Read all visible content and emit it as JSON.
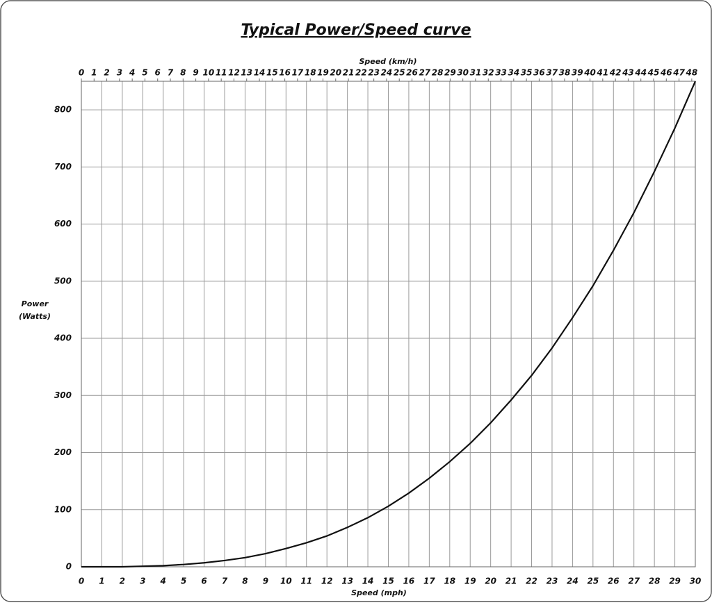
{
  "chart_data": {
    "type": "line",
    "title": "Typical Power/Speed curve",
    "xlabel": "Speed (mph)",
    "x2label": "Speed (km/h)",
    "ylabel": [
      "Power",
      "(Watts)"
    ],
    "x": [
      0,
      1,
      2,
      3,
      4,
      5,
      6,
      7,
      8,
      9,
      10,
      11,
      12,
      13,
      14,
      15,
      16,
      17,
      18,
      19,
      20,
      21,
      22,
      23,
      24,
      25,
      26,
      27,
      28,
      29,
      30
    ],
    "values": [
      0,
      0,
      0,
      1,
      2,
      4,
      7,
      11,
      16,
      23,
      32,
      42,
      54,
      69,
      86,
      106,
      129,
      155,
      184,
      216,
      252,
      292,
      335,
      383,
      436,
      492,
      554,
      620,
      692,
      768,
      850
    ],
    "color": "#111111",
    "xlim": [
      0,
      30
    ],
    "xticks": [
      0,
      1,
      2,
      3,
      4,
      5,
      6,
      7,
      8,
      9,
      10,
      11,
      12,
      13,
      14,
      15,
      16,
      17,
      18,
      19,
      20,
      21,
      22,
      23,
      24,
      25,
      26,
      27,
      28,
      29,
      30
    ],
    "x2lim": [
      0,
      48.28
    ],
    "x2ticks": [
      0,
      1,
      2,
      3,
      4,
      5,
      6,
      7,
      8,
      9,
      10,
      11,
      12,
      13,
      14,
      15,
      16,
      17,
      18,
      19,
      20,
      21,
      22,
      23,
      24,
      25,
      26,
      27,
      28,
      29,
      30,
      31,
      32,
      33,
      34,
      35,
      36,
      37,
      38,
      39,
      40,
      41,
      42,
      43,
      44,
      45,
      46,
      47,
      48
    ],
    "ylim": [
      0,
      850
    ],
    "yticks": [
      0,
      100,
      200,
      300,
      400,
      500,
      600,
      700,
      800
    ],
    "grid": true
  }
}
